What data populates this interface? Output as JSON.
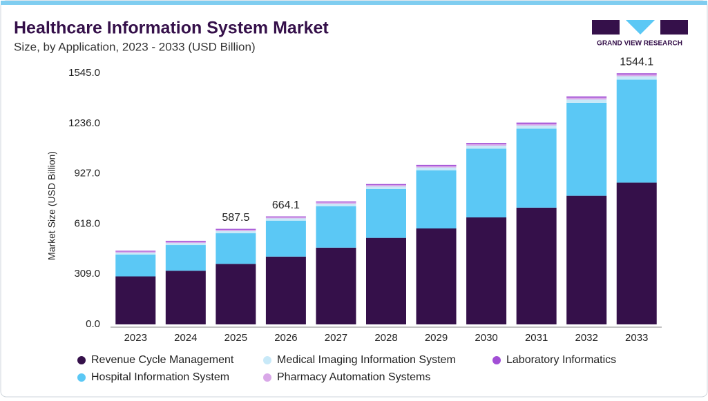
{
  "chart_data": {
    "type": "stacked-bar",
    "title": "Healthcare Information System Market",
    "subtitle": "Size, by Application, 2023 - 2033 (USD Billion)",
    "brand": "GRAND VIEW RESEARCH",
    "y_label": "Market Size (USD Billion)",
    "categories": [
      "2023",
      "2024",
      "2025",
      "2026",
      "2027",
      "2028",
      "2029",
      "2030",
      "2031",
      "2032",
      "2033"
    ],
    "series": [
      {
        "name": "Revenue Cycle Management",
        "color": "#35104a",
        "values": [
          295,
          330,
          372,
          417,
          472,
          532,
          590,
          658,
          718,
          791,
          872
        ]
      },
      {
        "name": "Hospital Information System",
        "color": "#5bc8f5",
        "values": [
          135,
          158,
          189,
          221,
          255,
          300,
          358,
          423,
          486,
          572,
          633
        ]
      },
      {
        "name": "Medical Imaging Information System",
        "color": "#c8e9f8",
        "values": [
          11,
          12,
          13,
          14,
          15,
          16,
          17,
          18,
          19,
          20,
          21
        ]
      },
      {
        "name": "Pharmacy Automation Systems",
        "color": "#d9a8e8",
        "values": [
          7,
          8,
          8,
          7,
          8,
          9,
          9,
          10,
          10,
          11,
          11
        ]
      },
      {
        "name": "Laboratory Informatics",
        "color": "#a24fd6",
        "values": [
          5,
          6,
          5.5,
          5.1,
          6,
          6,
          7,
          7,
          8,
          8,
          7.1
        ]
      }
    ],
    "totals": [
      null,
      null,
      587.5,
      664.1,
      null,
      null,
      null,
      null,
      null,
      null,
      1544.1
    ],
    "ylim": [
      0,
      1545
    ],
    "yticks": [
      {
        "value": 0,
        "label": "0.0"
      },
      {
        "value": 309,
        "label": "309.0"
      },
      {
        "value": 618,
        "label": "618.0"
      },
      {
        "value": 927,
        "label": "927.0"
      },
      {
        "value": 1236,
        "label": "1236.0"
      },
      {
        "value": 1545,
        "label": "1545.0"
      }
    ],
    "grid": false
  }
}
